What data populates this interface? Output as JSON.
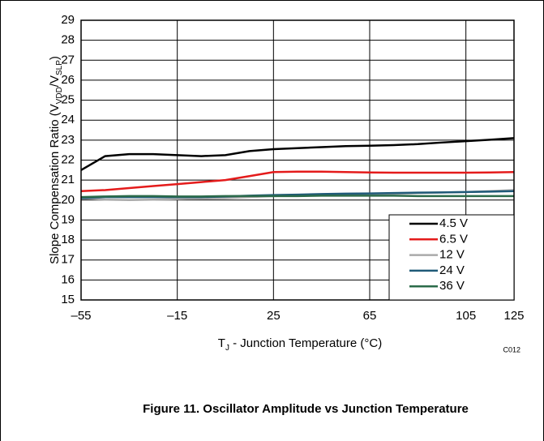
{
  "chart_data": {
    "type": "line",
    "ylabel": [
      "Slope Compensation Ratio (V",
      "VDD",
      "/V",
      "SLP",
      ")"
    ],
    "xlabel": [
      "T",
      "J",
      " - Junction Temperature (°C)"
    ],
    "annotation": "C012",
    "caption": "Figure 11. Oscillator Amplitude vs Junction Temperature",
    "x": [
      -55,
      -45,
      -35,
      -25,
      -15,
      -5,
      5,
      15,
      25,
      35,
      45,
      55,
      65,
      75,
      85,
      95,
      105,
      115,
      125
    ],
    "series": [
      {
        "name": "4.5 V",
        "color": "#000000",
        "values": [
          21.5,
          22.2,
          22.3,
          22.3,
          22.25,
          22.2,
          22.25,
          22.45,
          22.55,
          22.6,
          22.65,
          22.7,
          22.72,
          22.75,
          22.8,
          22.88,
          22.95,
          23.02,
          23.1
        ]
      },
      {
        "name": "6.5 V",
        "color": "#e41b1b",
        "values": [
          20.45,
          20.5,
          20.6,
          20.7,
          20.8,
          20.9,
          21.0,
          21.2,
          21.4,
          21.42,
          21.42,
          21.4,
          21.38,
          21.37,
          21.37,
          21.37,
          21.37,
          21.38,
          21.4
        ]
      },
      {
        "name": "12 V",
        "color": "#aaaaaa",
        "values": [
          20.1,
          20.02,
          20.0,
          20.02,
          20.05,
          20.08,
          20.1,
          20.15,
          20.2,
          20.22,
          20.25,
          20.28,
          20.3,
          20.32,
          20.35,
          20.38,
          20.4,
          20.45,
          20.5
        ]
      },
      {
        "name": "24 V",
        "color": "#1f5a78",
        "values": [
          20.1,
          20.15,
          20.15,
          20.15,
          20.15,
          20.15,
          20.18,
          20.22,
          20.25,
          20.27,
          20.3,
          20.32,
          20.33,
          20.35,
          20.37,
          20.38,
          20.4,
          20.42,
          20.45
        ]
      },
      {
        "name": "36 V",
        "color": "#2b6b4a",
        "values": [
          20.15,
          20.18,
          20.2,
          20.2,
          20.18,
          20.18,
          20.2,
          20.2,
          20.2,
          20.2,
          20.22,
          20.22,
          20.22,
          20.22,
          20.2,
          20.2,
          20.2,
          20.2,
          20.2
        ]
      }
    ],
    "xlim": [
      -55,
      125
    ],
    "xticks": [
      -55,
      -15,
      25,
      65,
      105,
      125
    ],
    "ylim": [
      15,
      29
    ],
    "yticks": [
      15,
      16,
      17,
      18,
      19,
      20,
      21,
      22,
      23,
      24,
      25,
      26,
      27,
      28,
      29
    ],
    "grid": true,
    "legend": "lower right"
  }
}
